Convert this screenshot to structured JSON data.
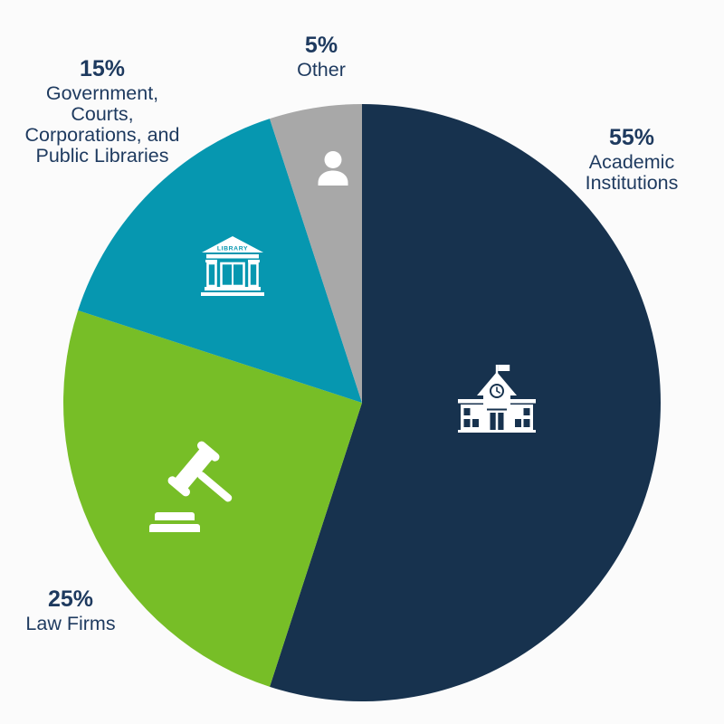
{
  "page": {
    "background_color": "#fbfbfb",
    "text_color": "#1e3a5f"
  },
  "chart_data": {
    "type": "pie",
    "title": "",
    "direction": "clockwise",
    "start_angle": "12-o-clock",
    "legend_position": "outside-labels",
    "slices": [
      {
        "label": "Academic\nInstitutions",
        "pct_label": "55%",
        "value": 55,
        "color": "#17324e",
        "icon": "school-building-icon"
      },
      {
        "label": "Law Firms",
        "pct_label": "25%",
        "value": 25,
        "color": "#77be27",
        "icon": "gavel-icon"
      },
      {
        "label": "Government,\nCourts,\nCorporations, and\nPublic Libraries",
        "pct_label": "15%",
        "value": 15,
        "color": "#0697b0",
        "icon": "library-icon"
      },
      {
        "label": "Other",
        "pct_label": "5%",
        "value": 5,
        "color": "#a8a8a8",
        "icon": "person-icon"
      }
    ]
  }
}
